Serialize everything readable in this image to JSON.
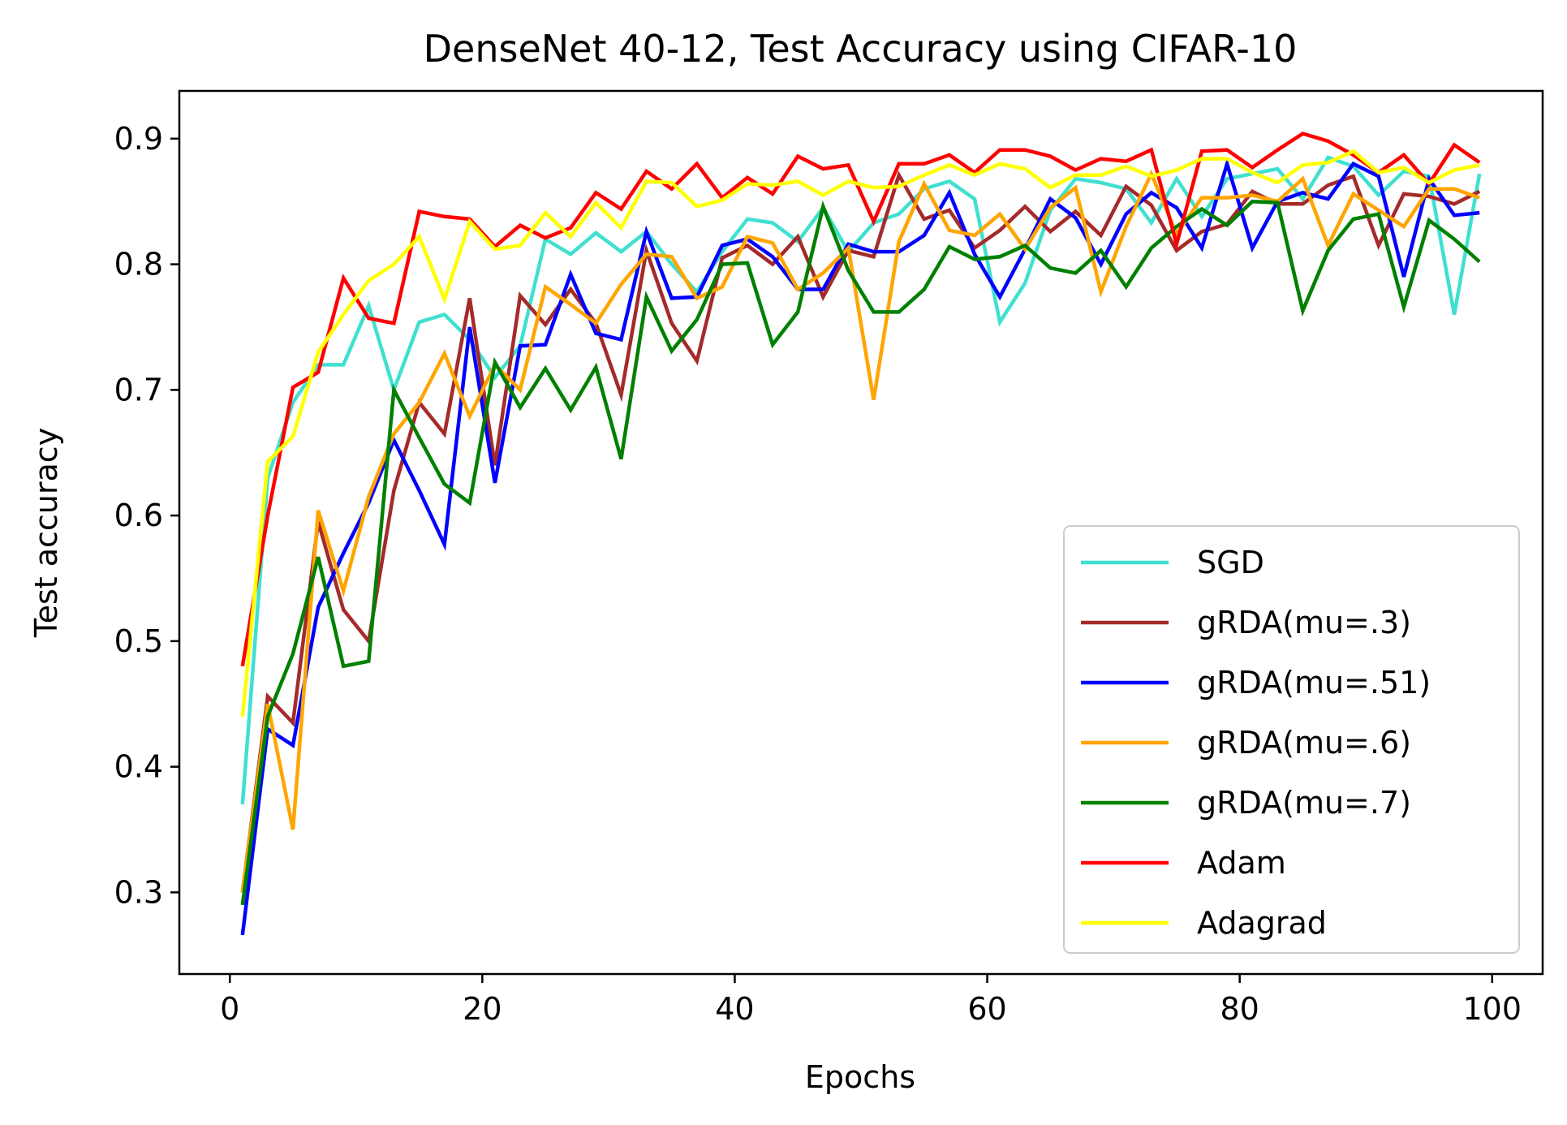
{
  "chart_data": {
    "type": "line",
    "title": "DenseNet 40-12, Test Accuracy using CIFAR-10",
    "xlabel": "Epochs",
    "ylabel": "Test accuracy",
    "xlim": [
      -4,
      104
    ],
    "ylim": [
      0.235,
      0.938
    ],
    "xticks": [
      0,
      20,
      40,
      60,
      80,
      100
    ],
    "xtick_labels": [
      "0",
      "20",
      "40",
      "60",
      "80",
      "100"
    ],
    "yticks": [
      0.3,
      0.4,
      0.5,
      0.6,
      0.7,
      0.8,
      0.9
    ],
    "ytick_labels": [
      "0.3",
      "0.4",
      "0.5",
      "0.6",
      "0.7",
      "0.8",
      "0.9"
    ],
    "grid": false,
    "legend_position": "lower-right",
    "x": [
      1,
      3,
      5,
      7,
      9,
      11,
      13,
      15,
      17,
      19,
      21,
      23,
      25,
      27,
      29,
      31,
      33,
      35,
      37,
      39,
      41,
      43,
      45,
      47,
      49,
      51,
      53,
      55,
      57,
      59,
      61,
      63,
      65,
      67,
      69,
      71,
      73,
      75,
      77,
      79,
      81,
      83,
      85,
      87,
      89,
      91,
      93,
      95,
      97,
      99
    ],
    "series": [
      {
        "name": "SGD",
        "color": "#40e0d0",
        "values": [
          0.37,
          0.63,
          0.69,
          0.72,
          0.72,
          0.767,
          0.7,
          0.754,
          0.76,
          0.74,
          0.71,
          0.735,
          0.82,
          0.808,
          0.825,
          0.81,
          0.826,
          0.8,
          0.778,
          0.81,
          0.836,
          0.833,
          0.818,
          0.845,
          0.81,
          0.833,
          0.84,
          0.86,
          0.866,
          0.852,
          0.754,
          0.785,
          0.843,
          0.868,
          0.865,
          0.86,
          0.833,
          0.868,
          0.838,
          0.868,
          0.872,
          0.876,
          0.852,
          0.885,
          0.878,
          0.855,
          0.874,
          0.87,
          0.76,
          0.872
        ]
      },
      {
        "name": "gRDA(mu=.3)",
        "color": "#a52a2a",
        "values": [
          0.3,
          0.456,
          0.435,
          0.595,
          0.525,
          0.5,
          0.62,
          0.69,
          0.665,
          0.773,
          0.64,
          0.775,
          0.752,
          0.78,
          0.753,
          0.696,
          0.811,
          0.753,
          0.723,
          0.805,
          0.815,
          0.8,
          0.822,
          0.774,
          0.811,
          0.806,
          0.871,
          0.836,
          0.843,
          0.813,
          0.827,
          0.846,
          0.826,
          0.842,
          0.823,
          0.862,
          0.847,
          0.811,
          0.826,
          0.832,
          0.858,
          0.848,
          0.848,
          0.863,
          0.87,
          0.815,
          0.856,
          0.854,
          0.848,
          0.858
        ]
      },
      {
        "name": "gRDA(mu=.51)",
        "color": "#0000ff",
        "values": [
          0.266,
          0.43,
          0.417,
          0.527,
          0.57,
          0.61,
          0.66,
          0.62,
          0.577,
          0.75,
          0.626,
          0.735,
          0.736,
          0.792,
          0.745,
          0.74,
          0.826,
          0.773,
          0.774,
          0.815,
          0.82,
          0.806,
          0.78,
          0.78,
          0.816,
          0.81,
          0.81,
          0.823,
          0.857,
          0.808,
          0.774,
          0.812,
          0.852,
          0.837,
          0.8,
          0.84,
          0.857,
          0.845,
          0.813,
          0.88,
          0.813,
          0.85,
          0.857,
          0.852,
          0.88,
          0.87,
          0.79,
          0.868,
          0.839,
          0.841
        ]
      },
      {
        "name": "gRDA(mu=.6)",
        "color": "#ffa500",
        "values": [
          0.3,
          0.45,
          0.35,
          0.604,
          0.54,
          0.615,
          0.665,
          0.69,
          0.729,
          0.679,
          0.72,
          0.7,
          0.782,
          0.768,
          0.753,
          0.784,
          0.808,
          0.806,
          0.773,
          0.782,
          0.822,
          0.817,
          0.78,
          0.793,
          0.813,
          0.692,
          0.818,
          0.864,
          0.827,
          0.823,
          0.84,
          0.812,
          0.845,
          0.861,
          0.778,
          0.83,
          0.872,
          0.824,
          0.853,
          0.853,
          0.855,
          0.85,
          0.868,
          0.815,
          0.856,
          0.843,
          0.83,
          0.86,
          0.86,
          0.853
        ]
      },
      {
        "name": "gRDA(mu=.7)",
        "color": "#008000",
        "values": [
          0.29,
          0.44,
          0.49,
          0.567,
          0.48,
          0.484,
          0.7,
          0.662,
          0.625,
          0.61,
          0.722,
          0.686,
          0.717,
          0.684,
          0.718,
          0.645,
          0.774,
          0.731,
          0.756,
          0.8,
          0.801,
          0.736,
          0.762,
          0.846,
          0.795,
          0.762,
          0.762,
          0.78,
          0.814,
          0.804,
          0.806,
          0.815,
          0.797,
          0.793,
          0.811,
          0.782,
          0.813,
          0.83,
          0.844,
          0.831,
          0.85,
          0.849,
          0.763,
          0.811,
          0.836,
          0.84,
          0.766,
          0.835,
          0.82,
          0.802
        ]
      },
      {
        "name": "Adam",
        "color": "#ff0000",
        "values": [
          0.48,
          0.6,
          0.702,
          0.714,
          0.789,
          0.757,
          0.753,
          0.842,
          0.838,
          0.836,
          0.814,
          0.831,
          0.821,
          0.829,
          0.857,
          0.844,
          0.874,
          0.86,
          0.88,
          0.853,
          0.869,
          0.856,
          0.886,
          0.876,
          0.879,
          0.834,
          0.88,
          0.88,
          0.887,
          0.873,
          0.891,
          0.891,
          0.886,
          0.875,
          0.884,
          0.882,
          0.891,
          0.816,
          0.89,
          0.891,
          0.877,
          0.891,
          0.904,
          0.898,
          0.887,
          0.873,
          0.887,
          0.864,
          0.895,
          0.881
        ]
      },
      {
        "name": "Adagrad",
        "color": "#ffff00",
        "values": [
          0.44,
          0.643,
          0.663,
          0.73,
          0.76,
          0.787,
          0.8,
          0.822,
          0.772,
          0.834,
          0.812,
          0.815,
          0.841,
          0.822,
          0.849,
          0.829,
          0.866,
          0.865,
          0.846,
          0.851,
          0.864,
          0.863,
          0.866,
          0.855,
          0.866,
          0.861,
          0.862,
          0.871,
          0.879,
          0.871,
          0.88,
          0.876,
          0.861,
          0.871,
          0.871,
          0.878,
          0.87,
          0.875,
          0.884,
          0.884,
          0.873,
          0.865,
          0.879,
          0.881,
          0.89,
          0.873,
          0.877,
          0.865,
          0.875,
          0.879
        ]
      }
    ]
  }
}
